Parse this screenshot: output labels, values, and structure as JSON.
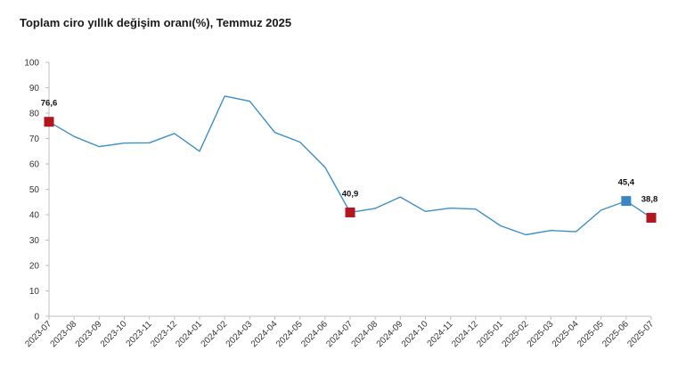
{
  "chart_data": {
    "type": "line",
    "title": "Toplam ciro yıllık değişim oranı(%), Temmuz 2025",
    "xlabel": "",
    "ylabel": "",
    "ylim": [
      0,
      100
    ],
    "yticks": [
      "0",
      "10",
      "20",
      "30",
      "40",
      "50",
      "60",
      "70",
      "80",
      "90",
      "100"
    ],
    "grid": false,
    "legend": "none",
    "line_color": "#3d8fc8",
    "categories": [
      "2023-07",
      "2023-08",
      "2023-09",
      "2023-10",
      "2023-11",
      "2023-12",
      "2024-01",
      "2024-02",
      "2024-03",
      "2024-04",
      "2024-05",
      "2024-06",
      "2024-07",
      "2024-08",
      "2024-09",
      "2024-10",
      "2024-11",
      "2024-12",
      "2025-01",
      "2025-02",
      "2025-03",
      "2025-04",
      "2025-05",
      "2025-06",
      "2025-07"
    ],
    "values": [
      76.6,
      70.8,
      66.8,
      68.2,
      68.3,
      72.0,
      65.0,
      86.7,
      84.7,
      72.4,
      68.6,
      58.7,
      40.9,
      42.5,
      47.0,
      41.3,
      42.6,
      42.2,
      35.6,
      32.1,
      33.8,
      33.3,
      41.8,
      45.4,
      38.8
    ],
    "highlights": [
      {
        "index": 0,
        "label": "76,6",
        "color": "#b3161e"
      },
      {
        "index": 12,
        "label": "40,9",
        "color": "#b3161e"
      },
      {
        "index": 23,
        "label": "45,4",
        "color": "#3a86c4"
      },
      {
        "index": 24,
        "label": "38,8",
        "color": "#b3161e"
      }
    ]
  }
}
